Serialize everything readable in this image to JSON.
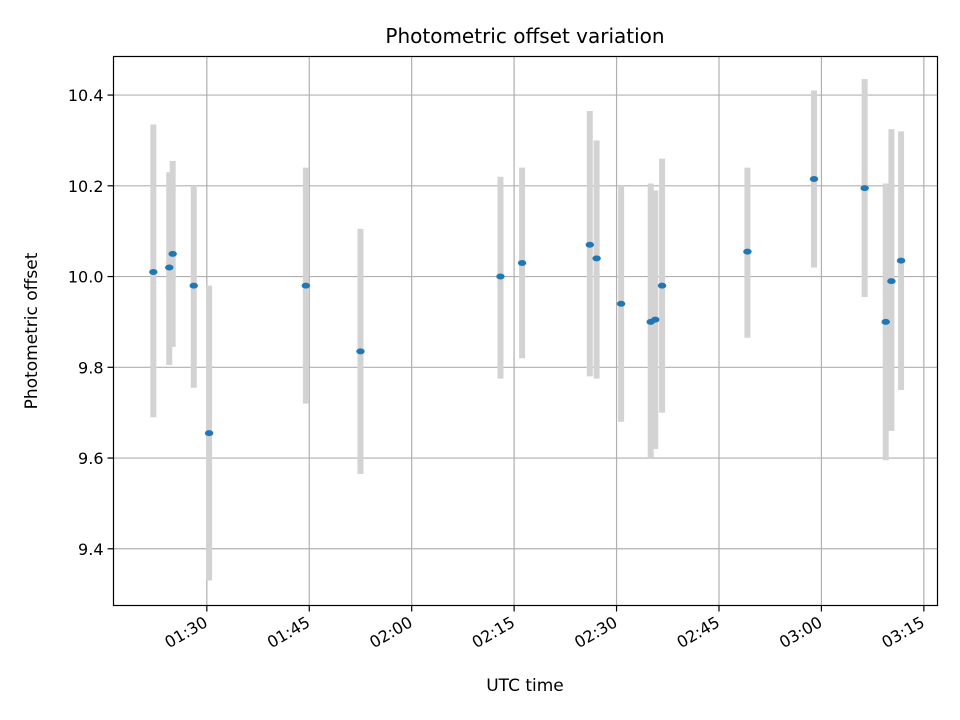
{
  "chart_data": {
    "type": "scatter",
    "title": "Photometric offset variation",
    "xlabel": "UTC time",
    "ylabel": "Photometric offset",
    "grid": true,
    "x_ticks": [
      "01:30",
      "01:45",
      "02:00",
      "02:15",
      "02:30",
      "02:45",
      "03:00",
      "03:15"
    ],
    "y_ticks": [
      "9.4",
      "9.6",
      "9.8",
      "10.0",
      "10.2",
      "10.4"
    ],
    "xlim": [
      "01:16:20",
      "03:17:00"
    ],
    "ylim": [
      9.275,
      10.485
    ],
    "colors": {
      "marker": "#1f77b4",
      "errorbar": "#d3d3d3",
      "grid": "#b0b0b0"
    },
    "series": [
      {
        "points": [
          {
            "time": "01:22:10",
            "y": 10.01,
            "err_low": 9.69,
            "err_high": 10.335
          },
          {
            "time": "01:24:30",
            "y": 10.02,
            "err_low": 9.805,
            "err_high": 10.23
          },
          {
            "time": "01:25:00",
            "y": 10.05,
            "err_low": 9.845,
            "err_high": 10.255
          },
          {
            "time": "01:28:05",
            "y": 9.98,
            "err_low": 9.755,
            "err_high": 10.2
          },
          {
            "time": "01:30:20",
            "y": 9.655,
            "err_low": 9.33,
            "err_high": 9.98
          },
          {
            "time": "01:44:30",
            "y": 9.98,
            "err_low": 9.72,
            "err_high": 10.24
          },
          {
            "time": "01:52:30",
            "y": 9.835,
            "err_low": 9.565,
            "err_high": 10.105
          },
          {
            "time": "02:13:00",
            "y": 10.0,
            "err_low": 9.775,
            "err_high": 10.22
          },
          {
            "time": "02:16:10",
            "y": 10.03,
            "err_low": 9.82,
            "err_high": 10.24
          },
          {
            "time": "02:26:05",
            "y": 10.07,
            "err_low": 9.78,
            "err_high": 10.365
          },
          {
            "time": "02:27:05",
            "y": 10.04,
            "err_low": 9.775,
            "err_high": 10.3
          },
          {
            "time": "02:30:40",
            "y": 9.94,
            "err_low": 9.68,
            "err_high": 10.2
          },
          {
            "time": "02:35:00",
            "y": 9.9,
            "err_low": 9.6,
            "err_high": 10.205
          },
          {
            "time": "02:35:40",
            "y": 9.905,
            "err_low": 9.62,
            "err_high": 10.19
          },
          {
            "time": "02:36:40",
            "y": 9.98,
            "err_low": 9.7,
            "err_high": 10.26
          },
          {
            "time": "02:49:10",
            "y": 10.055,
            "err_low": 9.865,
            "err_high": 10.24
          },
          {
            "time": "02:58:55",
            "y": 10.215,
            "err_low": 10.02,
            "err_high": 10.41
          },
          {
            "time": "03:06:20",
            "y": 10.195,
            "err_low": 9.955,
            "err_high": 10.435
          },
          {
            "time": "03:09:25",
            "y": 9.9,
            "err_low": 9.595,
            "err_high": 10.205
          },
          {
            "time": "03:10:15",
            "y": 9.99,
            "err_low": 9.66,
            "err_high": 10.325
          },
          {
            "time": "03:11:40",
            "y": 10.035,
            "err_low": 9.75,
            "err_high": 10.32
          }
        ]
      }
    ]
  }
}
